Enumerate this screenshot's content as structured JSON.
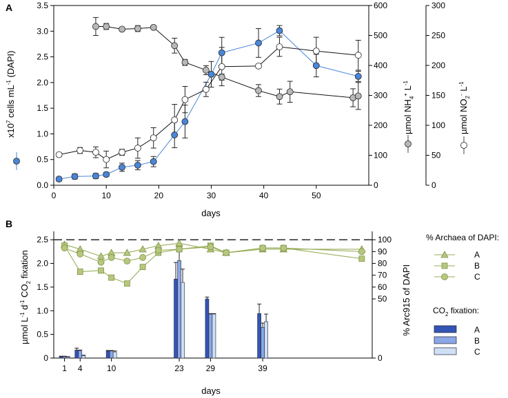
{
  "chart_data": [
    {
      "panel_label": "A",
      "type": "scatter",
      "xlabel": "days",
      "xlim": [
        0,
        60
      ],
      "xticks": [
        0,
        10,
        20,
        30,
        40,
        50
      ],
      "left_axis": {
        "label_main": "x10",
        "label_sup": "7",
        "label_rest": " cells mL",
        "label_sup2": "-1",
        "label_end": " (DAPI)",
        "ylim": [
          0,
          3.5
        ],
        "ticks": [
          "0.0",
          "0.5",
          "1.0",
          "1.5",
          "2.0",
          "2.5",
          "3.0",
          "3.5"
        ]
      },
      "mid_axis": {
        "label_a": "µmol NH",
        "label_sub": "4",
        "label_sup": "+",
        "label_b": " L",
        "label_sup2": "-1",
        "ylim": [
          0,
          600
        ],
        "ticks": [
          "0",
          "100",
          "200",
          "300",
          "400",
          "500",
          "600"
        ]
      },
      "right_axis": {
        "label_a": "µmol NO",
        "label_sub": "2",
        "label_sup": "-",
        "label_b": " L",
        "label_sup2": "-1",
        "ylim": [
          0,
          300
        ],
        "ticks": [
          "0",
          "50",
          "100",
          "150",
          "200",
          "250",
          "300"
        ]
      },
      "series": [
        {
          "name": "cells (DAPI)",
          "axis": "left",
          "color": "#4a86d8",
          "x": [
            1,
            4,
            8,
            10,
            13,
            16,
            19,
            23,
            25,
            30,
            32,
            39,
            43,
            50,
            58
          ],
          "y": [
            0.12,
            0.17,
            0.18,
            0.21,
            0.35,
            0.39,
            0.46,
            0.98,
            1.24,
            2.16,
            2.58,
            2.77,
            3.01,
            2.33,
            2.12
          ],
          "err": [
            0.04,
            0.05,
            0.05,
            0.04,
            0.08,
            0.09,
            0.1,
            0.25,
            0.32,
            0.25,
            0.3,
            0.28,
            0.1,
            0.22,
            0.1
          ]
        },
        {
          "name": "NH4+",
          "axis": "mid",
          "color": "#b8b8b8",
          "x": [
            8,
            10,
            13,
            16,
            19,
            23,
            25,
            29,
            32,
            39,
            43,
            45,
            57,
            58
          ],
          "y": [
            530,
            530,
            521,
            523,
            527,
            466,
            410,
            384,
            361,
            316,
            296,
            312,
            292,
            298
          ],
          "err": [
            30,
            10,
            5,
            10,
            5,
            25,
            10,
            15,
            10,
            20,
            25,
            35,
            30,
            45
          ]
        },
        {
          "name": "NO2-",
          "axis": "right",
          "color": "#ffffff",
          "x": [
            1,
            5,
            8,
            10,
            13,
            16,
            19,
            23,
            25,
            29,
            32,
            39,
            43,
            50,
            58
          ],
          "y": [
            51,
            58,
            55,
            43,
            55,
            62,
            79,
            109,
            143,
            160,
            198,
            199,
            231,
            224,
            217
          ],
          "err": [
            3,
            5,
            9,
            14,
            5,
            17,
            17,
            26,
            22,
            12,
            32,
            0,
            16,
            23,
            25
          ]
        }
      ],
      "legend": [
        "blue filled circle (left axis)",
        "grey filled circle (NH4+ axis)",
        "white open circle (NO2- axis)"
      ]
    },
    {
      "panel_label": "B",
      "type": "bar",
      "xlabel": "days",
      "categories": [
        "1",
        "4",
        "10",
        "23",
        "29",
        "39"
      ],
      "left_axis": {
        "label_a": "µmol L",
        "label_sup1": "-1",
        "label_b": " d",
        "label_sup2": "-1",
        "label_c": " CO",
        "label_sub": "2",
        "label_d": " fixation",
        "ylim": [
          0,
          2.75
        ],
        "ticks": [
          "0",
          "0.5",
          "1.0",
          "1.5",
          "2.0",
          "2.5"
        ]
      },
      "right_axis": {
        "label": "% Arc915 of DAPI",
        "ylim": [
          0,
          110
        ],
        "ticks": [
          "0",
          "50",
          "60",
          "70",
          "80",
          "90",
          "100"
        ]
      },
      "reference_line": 100,
      "bar_series": [
        {
          "name": "A",
          "color": "#3355b5",
          "values": [
            0.03,
            0.17,
            0.15,
            1.67,
            1.25,
            0.94
          ],
          "err": [
            0.01,
            0.04,
            0.01,
            0.35,
            0.04,
            0.2
          ]
        },
        {
          "name": "B",
          "color": "#8ba7e6",
          "values": [
            0.03,
            0.15,
            0.15,
            2.06,
            0.93,
            0.65
          ],
          "err": [
            0.01,
            0.02,
            0.01,
            0.22,
            0.01,
            0.09
          ]
        },
        {
          "name": "C",
          "color": "#cfe0f6",
          "values": [
            0.02,
            0.05,
            0.13,
            1.6,
            0.93,
            0.77
          ],
          "err": [
            0.01,
            0.01,
            0.02,
            0.28,
            0.01,
            0.16
          ]
        }
      ],
      "line_series": [
        {
          "name": "A",
          "marker": "triangle",
          "x": [
            1,
            4,
            8,
            10,
            13,
            16,
            19,
            23,
            29,
            32,
            39,
            43,
            58
          ],
          "y": [
            96,
            92,
            86,
            89,
            89,
            92,
            95,
            97,
            92,
            89,
            92,
            92,
            92
          ]
        },
        {
          "name": "B",
          "marker": "square",
          "x": [
            1,
            4,
            8,
            10,
            13,
            16,
            19,
            23,
            29,
            32,
            39,
            43,
            58
          ],
          "y": [
            95,
            73,
            74,
            68,
            63,
            77,
            89,
            92,
            95,
            89,
            93,
            93,
            84
          ]
        },
        {
          "name": "C",
          "marker": "circle",
          "x": [
            1,
            4,
            8,
            10,
            13,
            16,
            19,
            23,
            29,
            32,
            39,
            43,
            58
          ],
          "y": [
            93,
            88,
            81,
            85,
            82,
            85,
            91,
            92,
            94,
            89,
            93,
            93,
            90
          ]
        }
      ],
      "legend_archaea_title": "% Archaea of DAPI:",
      "legend_co2_title_a": "CO",
      "legend_co2_title_sub": "2",
      "legend_co2_title_b": " fixation:"
    }
  ]
}
